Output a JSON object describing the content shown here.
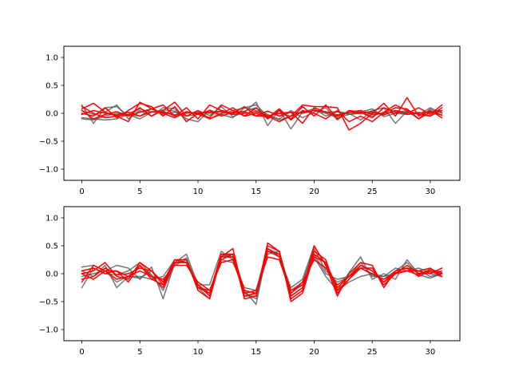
{
  "chart_data": [
    {
      "type": "line",
      "xlim": [
        -1.55,
        32.55
      ],
      "ylim": [
        -1.2,
        1.2
      ],
      "xticks": [
        0,
        5,
        10,
        15,
        20,
        25,
        30
      ],
      "yticks": [
        -1.0,
        -0.5,
        0.0,
        0.5,
        1.0
      ],
      "xtick_labels": [
        "0",
        "5",
        "10",
        "15",
        "20",
        "25",
        "30"
      ],
      "ytick_labels": [
        "−1.0",
        "−0.5",
        "0.0",
        "0.5",
        "1.0"
      ],
      "grid": false,
      "colors": {
        "gray": "#555555",
        "red": "#ff0000"
      },
      "x": [
        0,
        1,
        2,
        3,
        4,
        5,
        6,
        7,
        8,
        9,
        10,
        11,
        12,
        13,
        14,
        15,
        16,
        17,
        18,
        19,
        20,
        21,
        22,
        23,
        24,
        25,
        26,
        27,
        28,
        29,
        30,
        31
      ],
      "series": [
        {
          "color": "gray",
          "values": [
            0.15,
            -0.18,
            0.1,
            0.12,
            -0.05,
            0.08,
            0.02,
            0.06,
            0.04,
            -0.05,
            0.05,
            -0.04,
            0.12,
            -0.06,
            0.02,
            0.2,
            -0.22,
            0.06,
            -0.28,
            0.02,
            0.08,
            -0.05,
            0.03,
            0.0,
            -0.12,
            0.05,
            0.1,
            -0.18,
            0.04,
            -0.1,
            0.08,
            -0.04
          ]
        },
        {
          "color": "gray",
          "values": [
            0.05,
            -0.02,
            0.02,
            0.15,
            -0.1,
            0.05,
            -0.05,
            0.1,
            0.08,
            -0.1,
            -0.15,
            0.06,
            -0.02,
            -0.08,
            0.1,
            0.15,
            -0.05,
            -0.1,
            0.05,
            -0.08,
            0.02,
            0.1,
            -0.12,
            0.05,
            0.02,
            0.08,
            -0.06,
            0.0,
            0.05,
            -0.02,
            0.1,
            0.0
          ]
        },
        {
          "color": "gray",
          "values": [
            -0.08,
            -0.1,
            -0.12,
            -0.1,
            -0.02,
            -0.05,
            0.08,
            -0.02,
            0.02,
            -0.05,
            -0.02,
            -0.1,
            -0.02,
            0.05,
            0.1,
            0.05,
            -0.02,
            -0.12,
            -0.05,
            0.02,
            0.05,
            0.0,
            -0.08,
            -0.02,
            0.02,
            -0.05,
            0.02,
            0.0,
            -0.02,
            0.02,
            -0.05,
            0.05
          ]
        },
        {
          "color": "gray",
          "values": [
            -0.1,
            -0.12,
            -0.05,
            0.0,
            -0.02,
            -0.1,
            0.02,
            0.04,
            -0.05,
            0.0,
            0.02,
            0.0,
            0.05,
            0.0,
            0.04,
            0.1,
            -0.05,
            0.0,
            -0.05,
            0.03,
            0.05,
            0.02,
            0.03,
            -0.02,
            0.0,
            0.04,
            -0.02,
            0.05,
            0.02,
            0.0,
            0.03,
            0.02
          ]
        },
        {
          "color": "red",
          "values": [
            0.08,
            0.18,
            0.02,
            -0.05,
            -0.15,
            0.2,
            0.08,
            0.15,
            -0.05,
            0.1,
            -0.1,
            0.15,
            0.05,
            0.0,
            0.12,
            -0.05,
            -0.05,
            -0.15,
            -0.05,
            0.15,
            0.12,
            0.12,
            0.1,
            -0.3,
            -0.18,
            0.0,
            0.18,
            -0.05,
            0.28,
            -0.05,
            0.05,
            -0.08
          ]
        },
        {
          "color": "red",
          "values": [
            0.0,
            -0.05,
            0.1,
            -0.08,
            0.05,
            0.18,
            0.12,
            -0.05,
            0.12,
            -0.15,
            0.0,
            -0.08,
            0.15,
            0.05,
            -0.05,
            0.1,
            -0.1,
            0.05,
            -0.1,
            0.12,
            -0.05,
            0.15,
            -0.1,
            0.05,
            0.02,
            -0.08,
            0.1,
            0.02,
            0.0,
            0.1,
            -0.02,
            0.15
          ]
        },
        {
          "color": "red",
          "values": [
            0.12,
            0.0,
            -0.08,
            -0.05,
            -0.02,
            0.1,
            -0.05,
            0.05,
            0.2,
            -0.05,
            0.05,
            -0.1,
            0.0,
            0.1,
            -0.05,
            0.0,
            -0.08,
            0.08,
            -0.12,
            0.05,
            0.0,
            -0.1,
            0.05,
            -0.15,
            -0.05,
            -0.15,
            0.02,
            0.15,
            0.05,
            -0.02,
            -0.05,
            0.1
          ]
        },
        {
          "color": "red",
          "values": [
            0.05,
            -0.1,
            -0.02,
            0.03,
            -0.05,
            0.02,
            0.08,
            0.0,
            -0.08,
            0.03,
            -0.02,
            0.05,
            -0.05,
            0.02,
            0.03,
            -0.05,
            0.04,
            -0.05,
            0.02,
            -0.18,
            0.1,
            0.02,
            -0.03,
            0.02,
            0.05,
            -0.02,
            0.0,
            0.1,
            0.08,
            -0.1,
            0.02,
            0.05
          ]
        },
        {
          "color": "red",
          "values": [
            -0.02,
            0.05,
            0.0,
            -0.03,
            0.02,
            -0.05,
            0.03,
            0.02,
            -0.03,
            0.02,
            0.0,
            0.02,
            0.03,
            -0.02,
            0.0,
            0.03,
            -0.05,
            0.0,
            0.02,
            0.0,
            0.05,
            0.03,
            -0.05,
            0.02,
            0.0,
            0.02,
            -0.03,
            0.05,
            -0.02,
            0.0,
            0.02,
            -0.03
          ]
        }
      ]
    },
    {
      "type": "line",
      "xlim": [
        -1.55,
        32.55
      ],
      "ylim": [
        -1.2,
        1.2
      ],
      "xticks": [
        0,
        5,
        10,
        15,
        20,
        25,
        30
      ],
      "yticks": [
        -1.0,
        -0.5,
        0.0,
        0.5,
        1.0
      ],
      "xtick_labels": [
        "0",
        "5",
        "10",
        "15",
        "20",
        "25",
        "30"
      ],
      "ytick_labels": [
        "−1.0",
        "−0.5",
        "0.0",
        "0.5",
        "1.0"
      ],
      "grid": false,
      "colors": {
        "gray": "#555555",
        "red": "#ff0000"
      },
      "x": [
        0,
        1,
        2,
        3,
        4,
        5,
        6,
        7,
        8,
        9,
        10,
        11,
        12,
        13,
        14,
        15,
        16,
        17,
        18,
        19,
        20,
        21,
        22,
        23,
        24,
        25,
        26,
        27,
        28,
        29,
        30,
        31
      ],
      "series": [
        {
          "color": "gray",
          "values": [
            0.12,
            0.15,
            0.05,
            0.15,
            0.1,
            -0.1,
            0.12,
            -0.45,
            0.2,
            0.35,
            -0.2,
            -0.2,
            0.4,
            0.25,
            -0.3,
            -0.55,
            0.45,
            0.3,
            -0.25,
            -0.1,
            0.5,
            0.15,
            -0.3,
            0.02,
            0.3,
            -0.1,
            0.0,
            -0.1,
            0.25,
            0.0,
            0.0,
            -0.05
          ]
        },
        {
          "color": "gray",
          "values": [
            -0.25,
            0.1,
            0.0,
            -0.02,
            0.05,
            0.2,
            -0.02,
            -0.3,
            0.18,
            0.28,
            -0.25,
            -0.45,
            0.35,
            0.3,
            -0.4,
            -0.4,
            0.35,
            0.4,
            -0.35,
            -0.2,
            0.35,
            0.0,
            -0.1,
            -0.05,
            0.2,
            -0.05,
            -0.05,
            0.0,
            0.05,
            0.05,
            -0.05,
            0.0
          ]
        },
        {
          "color": "gray",
          "values": [
            0.05,
            -0.05,
            0.15,
            -0.25,
            -0.05,
            -0.05,
            -0.1,
            -0.05,
            0.25,
            0.2,
            -0.2,
            -0.35,
            0.25,
            0.2,
            -0.25,
            -0.3,
            0.45,
            0.35,
            -0.3,
            -0.15,
            0.45,
            0.05,
            -0.15,
            -0.05,
            0.1,
            -0.02,
            -0.1,
            0.05,
            0.2,
            -0.02,
            -0.08,
            0.0
          ]
        },
        {
          "color": "gray",
          "values": [
            -0.05,
            0.0,
            0.05,
            -0.15,
            -0.05,
            -0.08,
            0.05,
            -0.15,
            0.15,
            0.25,
            -0.2,
            -0.4,
            0.3,
            0.35,
            -0.35,
            -0.45,
            0.4,
            0.3,
            -0.4,
            -0.25,
            0.3,
            -0.05,
            -0.3,
            -0.15,
            -0.05,
            0.0,
            -0.05,
            0.1,
            0.05,
            0.1,
            0.02,
            0.05
          ]
        },
        {
          "color": "red",
          "values": [
            -0.15,
            0.15,
            0.05,
            -0.1,
            -0.05,
            0.15,
            -0.1,
            -0.2,
            0.25,
            0.25,
            -0.3,
            -0.45,
            0.3,
            0.45,
            -0.4,
            -0.35,
            0.5,
            0.4,
            -0.45,
            -0.3,
            0.5,
            0.15,
            -0.4,
            0.0,
            0.2,
            0.15,
            -0.25,
            0.05,
            0.1,
            0.05,
            0.1,
            -0.05
          ]
        },
        {
          "color": "red",
          "values": [
            0.0,
            0.05,
            0.2,
            -0.05,
            -0.1,
            0.2,
            0.05,
            -0.2,
            0.2,
            0.2,
            -0.25,
            -0.35,
            0.35,
            0.35,
            -0.45,
            -0.4,
            0.55,
            0.4,
            -0.5,
            -0.35,
            0.35,
            0.2,
            -0.25,
            -0.05,
            0.15,
            0.05,
            -0.15,
            0.0,
            0.05,
            0.05,
            0.0,
            0.1
          ]
        },
        {
          "color": "red",
          "values": [
            0.05,
            0.1,
            0.0,
            0.05,
            -0.15,
            0.15,
            -0.05,
            -0.25,
            0.2,
            0.2,
            -0.2,
            -0.4,
            0.3,
            0.3,
            -0.4,
            -0.35,
            0.4,
            0.35,
            -0.4,
            -0.25,
            0.4,
            0.25,
            -0.35,
            -0.1,
            0.1,
            0.1,
            -0.2,
            0.0,
            0.15,
            0.0,
            0.05,
            0.0
          ]
        },
        {
          "color": "red",
          "values": [
            -0.1,
            -0.05,
            0.1,
            -0.02,
            0.0,
            0.1,
            0.05,
            -0.15,
            0.25,
            0.2,
            -0.25,
            -0.3,
            0.25,
            0.35,
            -0.3,
            -0.35,
            0.45,
            0.3,
            -0.3,
            -0.2,
            0.3,
            0.2,
            -0.3,
            -0.1,
            0.15,
            0.05,
            -0.15,
            0.05,
            0.1,
            -0.05,
            0.05,
            -0.05
          ]
        },
        {
          "color": "red",
          "values": [
            0.0,
            -0.1,
            0.05,
            0.05,
            -0.05,
            0.05,
            -0.05,
            -0.1,
            0.15,
            0.15,
            -0.15,
            -0.3,
            0.2,
            0.25,
            -0.35,
            -0.3,
            0.3,
            0.25,
            -0.35,
            -0.15,
            0.25,
            0.1,
            -0.2,
            -0.05,
            0.1,
            0.0,
            -0.1,
            0.02,
            0.05,
            -0.02,
            0.08,
            0.02
          ]
        }
      ]
    }
  ]
}
